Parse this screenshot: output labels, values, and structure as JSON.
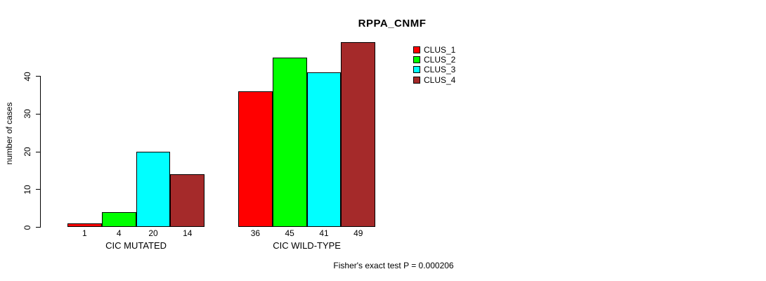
{
  "chart_data": {
    "type": "bar",
    "title": "RPPA_CNMF",
    "ylabel": "number of cases",
    "xlabel": "",
    "ylim": [
      0,
      49
    ],
    "yticks": [
      0,
      10,
      20,
      30,
      40
    ],
    "grid": false,
    "legend_position": "top-right",
    "bar_border_color": "#000000",
    "groups": [
      {
        "label": "CIC MUTATED",
        "values": [
          1,
          4,
          20,
          14
        ]
      },
      {
        "label": "CIC WILD-TYPE",
        "values": [
          36,
          45,
          41,
          49
        ]
      }
    ],
    "series": [
      {
        "name": "CLUS_1",
        "color": "#FF0000"
      },
      {
        "name": "CLUS_2",
        "color": "#00FF00"
      },
      {
        "name": "CLUS_3",
        "color": "#00FFFF"
      },
      {
        "name": "CLUS_4",
        "color": "#A52A2A"
      }
    ],
    "bar_value_labels": true,
    "annotation": "Fisher's exact test P = 0.000206"
  }
}
